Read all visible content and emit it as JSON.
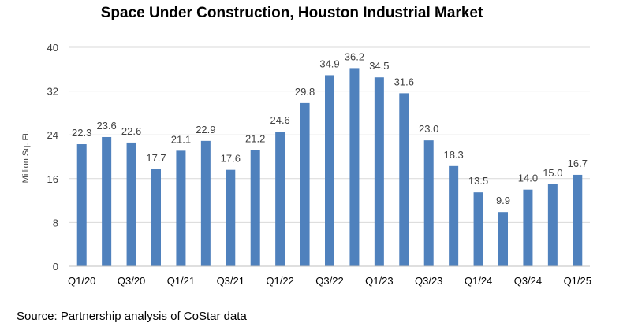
{
  "chart_data": {
    "type": "bar",
    "title": "Space Under Construction, Houston Industrial Market",
    "xlabel": "",
    "ylabel": "Million Sq. Ft.",
    "ylim": [
      0,
      40
    ],
    "yticks": [
      0,
      8,
      16,
      24,
      32,
      40
    ],
    "grid": true,
    "legend": "none",
    "categories": [
      "Q1/20",
      "Q2/20",
      "Q3/20",
      "Q4/20",
      "Q1/21",
      "Q2/21",
      "Q3/21",
      "Q4/21",
      "Q1/22",
      "Q2/22",
      "Q3/22",
      "Q4/22",
      "Q1/23",
      "Q2/23",
      "Q3/23",
      "Q4/23",
      "Q1/24",
      "Q2/24",
      "Q3/24",
      "Q4/24",
      "Q1/25"
    ],
    "visible_tick_labels": [
      "Q1/20",
      "Q3/20",
      "Q1/21",
      "Q3/21",
      "Q1/22",
      "Q3/22",
      "Q1/23",
      "Q3/23",
      "Q1/24",
      "Q3/24",
      "Q1/25"
    ],
    "values": [
      22.3,
      23.6,
      22.6,
      17.7,
      21.1,
      22.9,
      17.6,
      21.2,
      24.6,
      29.8,
      34.9,
      36.2,
      34.5,
      31.6,
      23.0,
      18.3,
      13.5,
      9.9,
      14.0,
      15.0,
      16.7
    ],
    "value_labels": [
      "22.3",
      "23.6",
      "22.6",
      "17.7",
      "21.1",
      "22.9",
      "17.6",
      "21.2",
      "24.6",
      "29.8",
      "34.9",
      "36.2",
      "34.5",
      "31.6",
      "23.0",
      "18.3",
      "13.5",
      "9.9",
      "14.0",
      "15.0",
      "16.7"
    ],
    "bar_color": "#4f81bd",
    "grid_color": "#d9d9d9",
    "axis_color": "#bfbfbf",
    "text_color": "#404040"
  },
  "footer": {
    "source": "Source: Partnership analysis of CoStar data"
  }
}
